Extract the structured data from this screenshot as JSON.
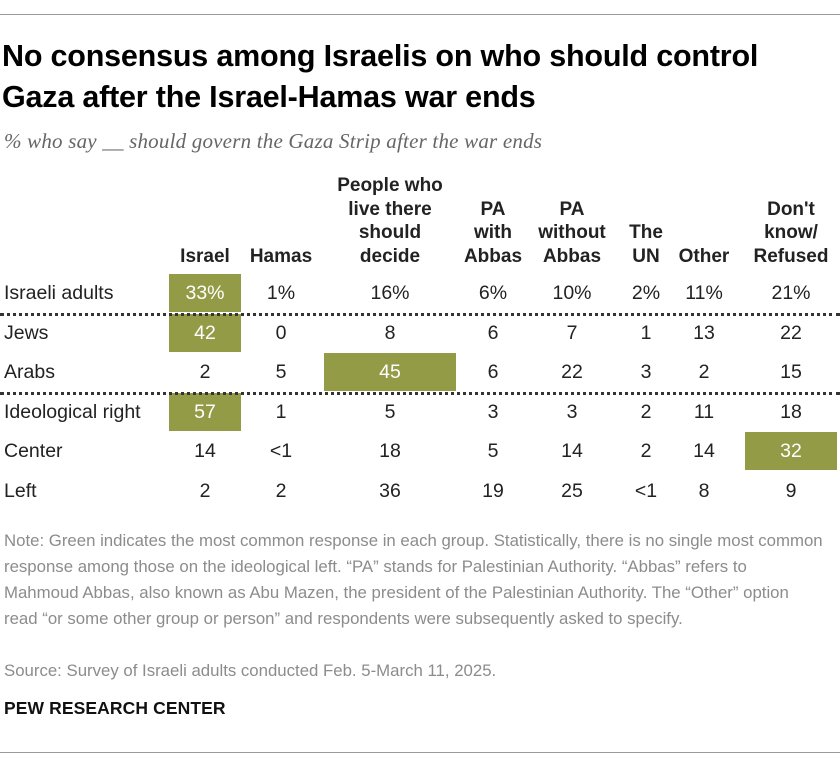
{
  "title": "No consensus among Israelis on who should control Gaza after the Israel-Hamas war ends",
  "subtitle": "% who say __ should govern the Gaza Strip after the war ends",
  "highlight_color": "#939b47",
  "chart_data": {
    "type": "table",
    "columns": [
      "Israel",
      "Hamas",
      "People who\nlive there\nshould\ndecide",
      "PA\nwith\nAbbas",
      "PA\nwithout\nAbbas",
      "The\nUN",
      "Other",
      "Don't\nknow/\nRefused"
    ],
    "rows": [
      {
        "label": "Israeli adults",
        "values": [
          "33%",
          "1%",
          "16%",
          "6%",
          "10%",
          "2%",
          "11%",
          "21%"
        ],
        "highlight": 0
      },
      {
        "label": "Jews",
        "values": [
          "42",
          "0",
          "8",
          "6",
          "7",
          "1",
          "13",
          "22"
        ],
        "highlight": 0
      },
      {
        "label": "Arabs",
        "values": [
          "2",
          "5",
          "45",
          "6",
          "22",
          "3",
          "2",
          "15"
        ],
        "highlight": 2
      },
      {
        "label": "Ideological right",
        "values": [
          "57",
          "1",
          "5",
          "3",
          "3",
          "2",
          "11",
          "18"
        ],
        "highlight": 0
      },
      {
        "label": "Center",
        "values": [
          "14",
          "<1",
          "18",
          "5",
          "14",
          "2",
          "14",
          "32"
        ],
        "highlight": 7
      },
      {
        "label": "Left",
        "values": [
          "2",
          "2",
          "36",
          "19",
          "25",
          "<1",
          "8",
          "9"
        ],
        "highlight": null
      }
    ]
  },
  "note": "Note: Green indicates the most common response in each group. Statistically, there is no single most common response among those on the ideological left. “PA” stands for Palestinian Authority. “Abbas” refers to Mahmoud Abbas, also known as Abu Mazen, the president of the Palestinian Authority. The “Other” option read “or some other group or person” and respondents were subsequently asked to specify.",
  "source": "Source: Survey of Israeli adults conducted Feb. 5-March 11, 2025.",
  "brand": "PEW RESEARCH CENTER"
}
